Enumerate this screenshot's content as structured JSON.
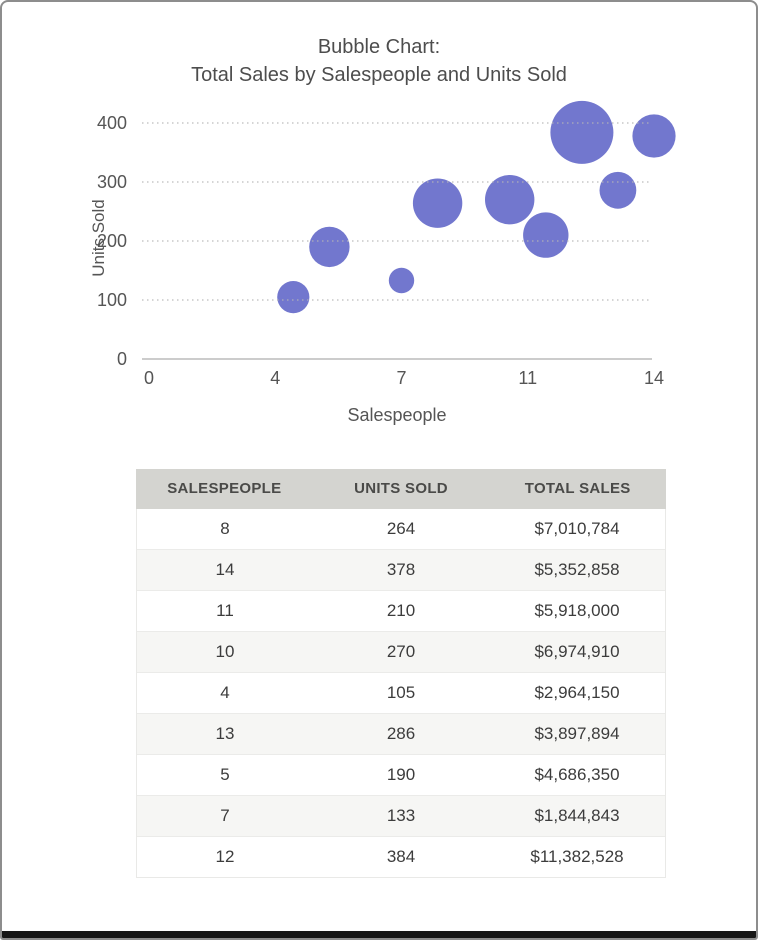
{
  "chart": {
    "title_line1": "Bubble Chart:",
    "title_line2": "Total Sales by Salespeople and Units Sold",
    "x_axis_label": "Salespeople",
    "y_axis_label": "Units Sold"
  },
  "chart_data": {
    "type": "bubble",
    "title": "Bubble Chart: Total Sales by Salespeople and Units Sold",
    "xlabel": "Salespeople",
    "ylabel": "Units Sold",
    "xlim": [
      0,
      14
    ],
    "ylim": [
      0,
      400
    ],
    "x_tick_positions": [
      0,
      3.5,
      7,
      10.5,
      14
    ],
    "x_tick_labels": [
      "0",
      "4",
      "7",
      "11",
      "14"
    ],
    "y_ticks": [
      0,
      100,
      200,
      300,
      400
    ],
    "grid": "dotted-horizontal",
    "legend": "none",
    "size_encodes": "total_sales",
    "points": [
      {
        "salespeople": 8,
        "units_sold": 264,
        "total_sales": 7010784
      },
      {
        "salespeople": 14,
        "units_sold": 378,
        "total_sales": 5352858
      },
      {
        "salespeople": 11,
        "units_sold": 210,
        "total_sales": 5918000
      },
      {
        "salespeople": 10,
        "units_sold": 270,
        "total_sales": 6974910
      },
      {
        "salespeople": 4,
        "units_sold": 105,
        "total_sales": 2964150
      },
      {
        "salespeople": 13,
        "units_sold": 286,
        "total_sales": 3897894
      },
      {
        "salespeople": 5,
        "units_sold": 190,
        "total_sales": 4686350
      },
      {
        "salespeople": 7,
        "units_sold": 133,
        "total_sales": 1844843
      },
      {
        "salespeople": 12,
        "units_sold": 384,
        "total_sales": 11382528
      }
    ]
  },
  "table": {
    "columns": [
      "SALESPEOPLE",
      "UNITS SOLD",
      "TOTAL SALES"
    ],
    "rows": [
      [
        "8",
        "264",
        "$7,010,784"
      ],
      [
        "14",
        "378",
        "$5,352,858"
      ],
      [
        "11",
        "210",
        "$5,918,000"
      ],
      [
        "10",
        "270",
        "$6,974,910"
      ],
      [
        "4",
        "105",
        "$2,964,150"
      ],
      [
        "13",
        "286",
        "$3,897,894"
      ],
      [
        "5",
        "190",
        "$4,686,350"
      ],
      [
        "7",
        "133",
        "$1,844,843"
      ],
      [
        "12",
        "384",
        "$11,382,528"
      ]
    ]
  },
  "colors": {
    "bubble": "#7277ce",
    "grid": "#b5b5b5",
    "axis_line": "#9a9a9a",
    "chart_text": "#555555",
    "title_text": "#4d4d4d",
    "table_header_bg": "#d4d4d0",
    "table_stripe_bg": "#f6f6f4",
    "table_header_text": "#4a4a48",
    "table_cell_text": "#3c3c3c",
    "frame_border": "#8d8d8d",
    "bottom_bar": "#161616",
    "background": "#ffffff"
  }
}
